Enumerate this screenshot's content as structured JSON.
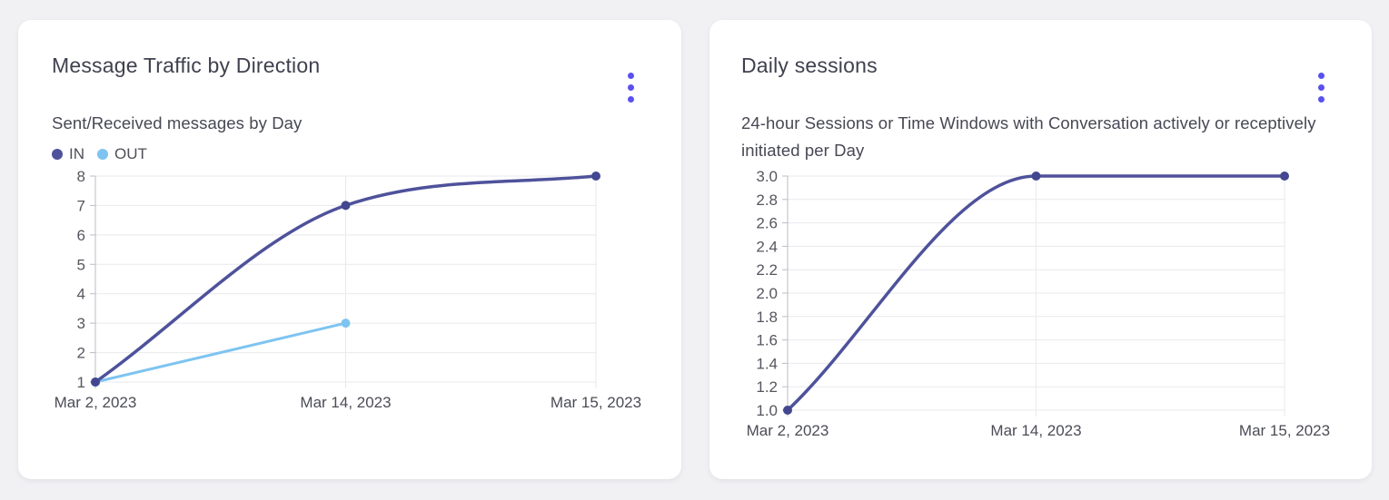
{
  "colors": {
    "accent": "#5a50f0",
    "series_in": "#4e529b",
    "series_in_marker": "#434790",
    "series_out": "#7ec4f0",
    "grid": "#e9e9ed",
    "axis": "#bcbcc6"
  },
  "cards": [
    {
      "title": "Message Traffic by Direction",
      "subtitle": "Sent/Received messages by Day",
      "menu_icon": "kebab-menu-icon"
    },
    {
      "title": "Daily sessions",
      "subtitle": "24-hour Sessions or Time Windows with Conversation actively or receptively initiated per Day",
      "menu_icon": "kebab-menu-icon"
    }
  ],
  "chart_data": [
    {
      "type": "line",
      "title": "Message Traffic by Direction",
      "subtitle": "Sent/Received messages by Day",
      "categories": [
        "Mar 2, 2023",
        "Mar 14, 2023",
        "Mar 15, 2023"
      ],
      "series": [
        {
          "name": "IN",
          "color": "#4e529b",
          "marker_color": "#434790",
          "values": [
            1,
            7,
            8
          ],
          "smooth": true,
          "width": 3.5
        },
        {
          "name": "OUT",
          "color": "#7ec4f0",
          "marker_color": "#7ec4f0",
          "values": [
            1,
            3
          ],
          "smooth": false,
          "width": 3
        }
      ],
      "ylim": [
        1,
        8
      ],
      "yticks": [
        "8",
        "7",
        "6",
        "5",
        "4",
        "3",
        "2",
        "1"
      ],
      "xlabel": "",
      "ylabel": "",
      "grid": true,
      "legend_position": "top-left"
    },
    {
      "type": "line",
      "title": "Daily sessions",
      "subtitle": "24-hour Sessions or Time Windows with Conversation actively or receptively initiated per Day",
      "categories": [
        "Mar 2, 2023",
        "Mar 14, 2023",
        "Mar 15, 2023"
      ],
      "series": [
        {
          "name": "Daily sessions",
          "color": "#4e529b",
          "marker_color": "#434790",
          "values": [
            1.0,
            3.0,
            3.0
          ],
          "smooth": true,
          "width": 3.5
        }
      ],
      "ylim": [
        1.0,
        3.0
      ],
      "yticks": [
        "3.0",
        "2.8",
        "2.6",
        "2.4",
        "2.2",
        "2.0",
        "1.8",
        "1.6",
        "1.4",
        "1.2",
        "1.0"
      ],
      "xlabel": "",
      "ylabel": "",
      "grid": true,
      "legend_position": "none"
    }
  ]
}
